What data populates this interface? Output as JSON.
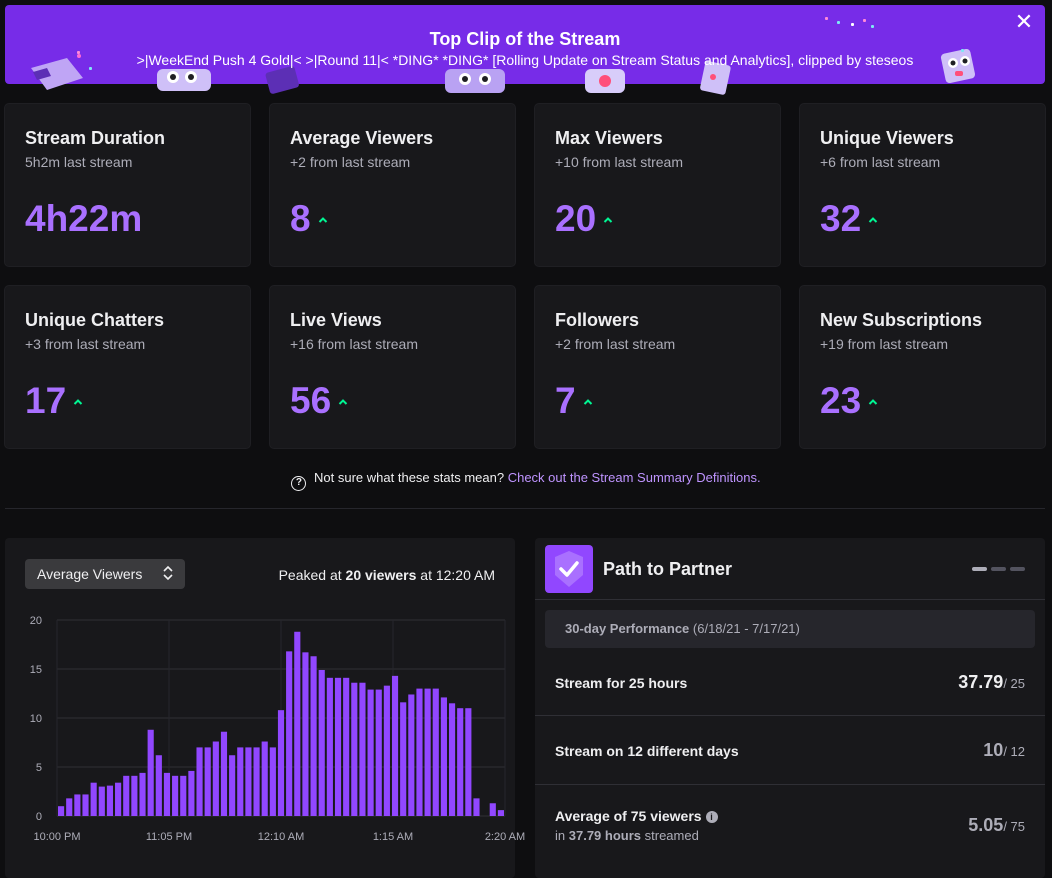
{
  "banner": {
    "title": "Top Clip of the Stream",
    "subtitle": ">|WeekEnd Push 4 Gold|< >|Round 11|< *DING* *DING* [Rolling Update on Stream Status and Analytics], clipped by steseos",
    "close_icon": "close-icon",
    "bg_color": "#772ce8"
  },
  "stats": [
    {
      "title": "Stream Duration",
      "sub": "5h2m last stream",
      "value": "4h22m",
      "trend": "none"
    },
    {
      "title": "Average Viewers",
      "sub": "+2 from last stream",
      "value": "8",
      "trend": "up"
    },
    {
      "title": "Max Viewers",
      "sub": "+10 from last stream",
      "value": "20",
      "trend": "up"
    },
    {
      "title": "Unique Viewers",
      "sub": "+6 from last stream",
      "value": "32",
      "trend": "up"
    },
    {
      "title": "Unique Chatters",
      "sub": "+3 from last stream",
      "value": "17",
      "trend": "up"
    },
    {
      "title": "Live Views",
      "sub": "+16 from last stream",
      "value": "56",
      "trend": "up"
    },
    {
      "title": "Followers",
      "sub": "+2 from last stream",
      "value": "7",
      "trend": "up"
    },
    {
      "title": "New Subscriptions",
      "sub": "+19 from last stream",
      "value": "23",
      "trend": "up"
    }
  ],
  "help": {
    "text": "Not sure what these stats mean?",
    "link": "Check out the Stream Summary Definitions."
  },
  "chart_panel": {
    "select_label": "Average Viewers",
    "peak_prefix": "Peaked at",
    "peak_value": "20 viewers",
    "peak_suffix": "at 12:20 AM"
  },
  "chart_data": {
    "type": "bar",
    "title": "",
    "xlabel": "",
    "ylabel": "",
    "ylim": [
      0,
      20
    ],
    "yticks": [
      0,
      5,
      10,
      15,
      20
    ],
    "xtick_labels": [
      "10:00 PM",
      "11:05 PM",
      "12:10 AM",
      "1:15 AM",
      "2:20 AM"
    ],
    "xrange": [
      "10:00 PM",
      "2:20 AM"
    ],
    "grid": true,
    "bar_color": "#9147ff",
    "values": [
      1,
      1.8,
      2.2,
      2.2,
      3.4,
      3,
      3.1,
      3.4,
      4.1,
      4.1,
      4.4,
      8.8,
      6.2,
      4.4,
      4.1,
      4.1,
      4.6,
      7,
      7,
      7.6,
      8.6,
      6.2,
      7,
      7,
      7,
      7.6,
      7,
      10.8,
      16.8,
      18.8,
      16.7,
      16.3,
      14.9,
      14.1,
      14.1,
      14.1,
      13.6,
      13.6,
      12.9,
      12.9,
      13.3,
      14.3,
      11.6,
      12.4,
      13,
      13,
      13,
      12.1,
      11.5,
      11,
      11,
      1.8,
      0,
      1.3,
      0.6
    ]
  },
  "ptp": {
    "badge_icon": "checkmark-shield-icon",
    "title": "Path to Partner",
    "period_label": "30-day Performance",
    "period_range": "(6/18/21 - 7/17/21)",
    "rows": [
      {
        "label": "Stream for 25 hours",
        "value": "37.79",
        "target": "/ 25"
      },
      {
        "label": "Stream on 12 different days",
        "value": "10",
        "target": "/ 12"
      },
      {
        "label": "Average of 75 viewers",
        "sub_prefix": "in",
        "sub_value": "37.79 hours",
        "sub_suffix": "streamed",
        "value": "5.05",
        "target": "/ 75"
      }
    ]
  }
}
